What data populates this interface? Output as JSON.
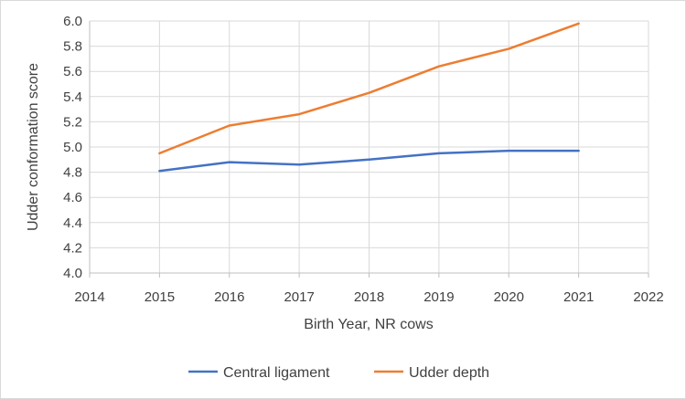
{
  "chart_data": {
    "type": "line",
    "title": "",
    "xlabel": "Birth Year, NR cows",
    "ylabel": "Udder conformation score",
    "xlim": [
      2014,
      2022
    ],
    "ylim": [
      4.0,
      6.0
    ],
    "x_ticks": [
      "2014",
      "2015",
      "2016",
      "2017",
      "2018",
      "2019",
      "2020",
      "2021",
      "2022"
    ],
    "y_ticks": [
      "4.0",
      "4.2",
      "4.4",
      "4.6",
      "4.8",
      "5.0",
      "5.2",
      "5.4",
      "5.6",
      "5.8",
      "6.0"
    ],
    "grid": true,
    "legend_position": "bottom",
    "x": [
      2015,
      2016,
      2017,
      2018,
      2019,
      2020,
      2021
    ],
    "series": [
      {
        "name": "Central ligament",
        "color": "#4472c4",
        "values": [
          4.81,
          4.88,
          4.86,
          4.9,
          4.95,
          4.97,
          4.97
        ]
      },
      {
        "name": "Udder depth",
        "color": "#ed7d31",
        "values": [
          4.95,
          5.17,
          5.26,
          5.43,
          5.64,
          5.78,
          5.98
        ]
      }
    ]
  }
}
